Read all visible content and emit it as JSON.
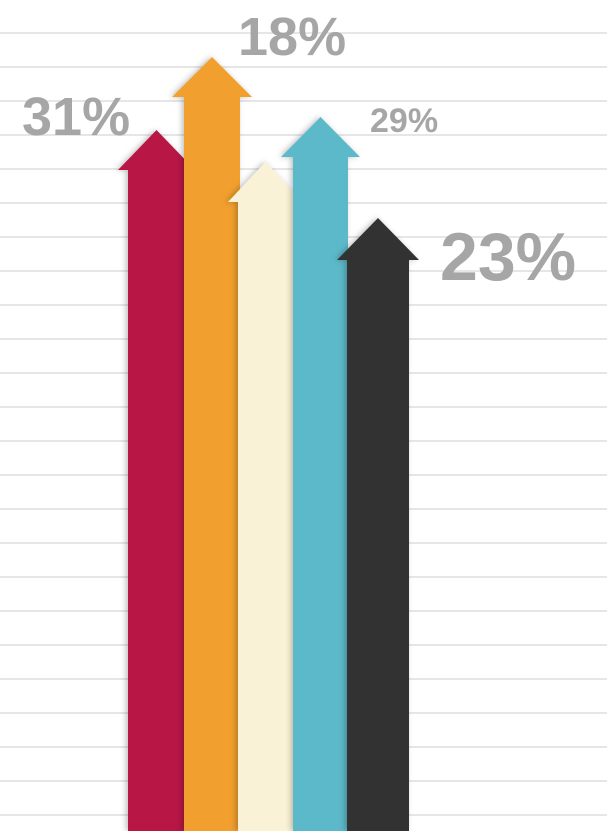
{
  "chart_data": {
    "type": "bar",
    "series": [
      {
        "label": "31%",
        "color": "#b81245"
      },
      {
        "label": "18%",
        "color": "#f19f2d"
      },
      {
        "label": "",
        "color": "#faf2d7"
      },
      {
        "label": "29%",
        "color": "#5bb9c9"
      },
      {
        "label": "23%",
        "color": "#333333"
      }
    ],
    "label_color": "#a6a6a6",
    "grid": true
  }
}
